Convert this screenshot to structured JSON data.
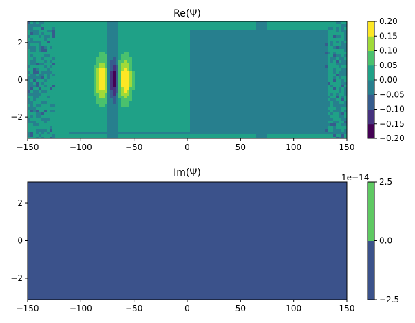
{
  "chart_data": [
    {
      "type": "heatmap",
      "title": "Re(Ψ)",
      "xlim": [
        -150,
        150
      ],
      "ylim": [
        -3.14,
        3.14
      ],
      "x_ticks": [
        {
          "value": -150,
          "label": "−150"
        },
        {
          "value": -100,
          "label": "−100"
        },
        {
          "value": -50,
          "label": "−50"
        },
        {
          "value": 0,
          "label": "0"
        },
        {
          "value": 50,
          "label": "50"
        },
        {
          "value": 100,
          "label": "100"
        },
        {
          "value": 150,
          "label": "150"
        }
      ],
      "y_ticks": [
        {
          "value": 2,
          "label": "2"
        },
        {
          "value": 0,
          "label": "0"
        },
        {
          "value": -2,
          "label": "−2"
        }
      ],
      "colorbar": {
        "levels": [
          -0.2,
          -0.15,
          -0.1,
          -0.05,
          0.0,
          0.05,
          0.1,
          0.15,
          0.2
        ],
        "colors": [
          "#440154",
          "#46327e",
          "#365c8d",
          "#277f8e",
          "#1fa187",
          "#4ac16d",
          "#a0da39",
          "#fde725"
        ],
        "ticks": [
          {
            "value": 0.2,
            "label": "0.20"
          },
          {
            "value": 0.15,
            "label": "0.15"
          },
          {
            "value": 0.1,
            "label": "0.10"
          },
          {
            "value": 0.05,
            "label": "0.05"
          },
          {
            "value": 0.0,
            "label": "0.00"
          },
          {
            "value": -0.05,
            "label": "−0.05"
          },
          {
            "value": -0.1,
            "label": "−0.10"
          },
          {
            "value": -0.15,
            "label": "−0.15"
          },
          {
            "value": -0.2,
            "label": "−0.20"
          }
        ]
      },
      "regions": {
        "background_level": 0.025,
        "right_half_level": -0.025,
        "right_half_x": [
          3,
          132
        ],
        "strip_level": -0.025,
        "strip_left_x": [
          -74,
          -64
        ],
        "strip_right_x": [
          65,
          75
        ],
        "bottom_band_y": [
          -2.9,
          -2.7
        ],
        "bottom_band_x": [
          -112,
          148
        ],
        "noise_regions_x": [
          [
            -150,
            -125
          ],
          [
            130,
            150
          ]
        ]
      },
      "features": [
        {
          "x": -80,
          "y": 0,
          "peak": 0.18,
          "sigma_x": 4,
          "sigma_y": 0.75
        },
        {
          "x": -69,
          "y": 0,
          "peak": -0.17,
          "sigma_x": 2.5,
          "sigma_y": 0.65
        },
        {
          "x": -58,
          "y": 0,
          "peak": 0.19,
          "sigma_x": 4,
          "sigma_y": 0.75
        }
      ]
    },
    {
      "type": "heatmap",
      "title": "Im(Ψ)",
      "xlim": [
        -150,
        150
      ],
      "ylim": [
        -3.14,
        3.14
      ],
      "x_ticks": [
        {
          "value": -150,
          "label": "−150"
        },
        {
          "value": -100,
          "label": "−100"
        },
        {
          "value": -50,
          "label": "−50"
        },
        {
          "value": 0,
          "label": "0"
        },
        {
          "value": 50,
          "label": "50"
        },
        {
          "value": 100,
          "label": "100"
        },
        {
          "value": 150,
          "label": "150"
        }
      ],
      "y_ticks": [
        {
          "value": 2,
          "label": "2"
        },
        {
          "value": 0,
          "label": "0"
        },
        {
          "value": -2,
          "label": "−2"
        }
      ],
      "colorbar": {
        "levels": [
          -2.5,
          0.0,
          2.5
        ],
        "colors": [
          "#3b528b",
          "#5ec962"
        ],
        "offset_label": "1e−14",
        "ticks": [
          {
            "value": 2.5,
            "label": "2.5"
          },
          {
            "value": 0.0,
            "label": "0.0"
          },
          {
            "value": -2.5,
            "label": "−2.5"
          }
        ]
      },
      "fill_level": -1.0
    }
  ]
}
